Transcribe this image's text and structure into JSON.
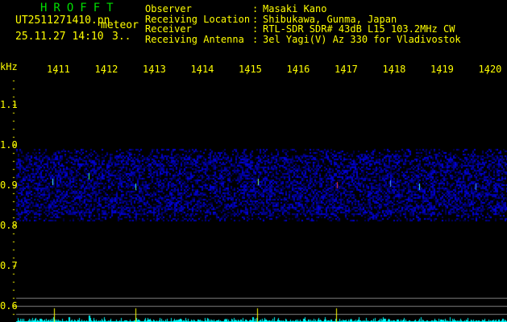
{
  "header": {
    "title": "HROFFT",
    "filename": "UT2511271410.pn",
    "mode": "meteor",
    "datetime": "25.11.27 14:10",
    "count": "3..",
    "info": [
      {
        "label": "Observer",
        "value": "Masaki Kano"
      },
      {
        "label": "Receiving Location",
        "value": "Shibukawa, Gunma, Japan"
      },
      {
        "label": "Receiver",
        "value": "RTL-SDR SDR# 43dB L15 103.2MHz CW"
      },
      {
        "label": "Receiving Antenna",
        "value": "3el Yagi(V) Az 330 for Vladivostok"
      }
    ]
  },
  "axes": {
    "y_unit": "kHz",
    "x_ticks": [
      "1411",
      "1412",
      "1413",
      "1414",
      "1415",
      "1416",
      "1417",
      "1418",
      "1419",
      "1420"
    ],
    "y_ticks": [
      "1.1",
      "1.0",
      "0.9",
      "0.8",
      "0.7",
      "0.6"
    ]
  },
  "colors": {
    "text": "#ffff00",
    "title": "#00e000",
    "noise": "#0000c0",
    "spectrum": "#00ffff",
    "gridline": "#808080"
  }
}
